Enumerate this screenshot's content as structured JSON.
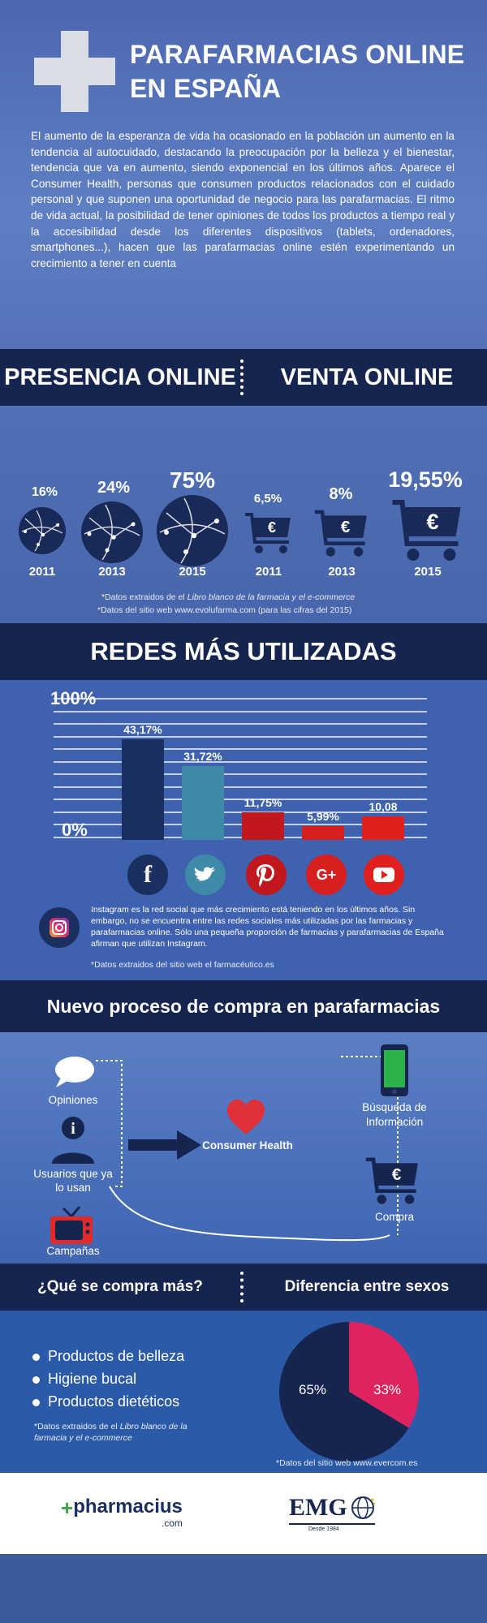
{
  "header": {
    "title_line1": "PARAFARMACIAS ONLINE",
    "title_line2": "EN ESPAÑA",
    "intro": "El aumento de la esperanza de vida ha ocasionado en la población un aumento en la tendencia al autocuidado, destacando la preocupación por la belleza y el bienestar, tendencia que va en aumento, siendo exponencial en los últimos años. Aparece el Consumer Health, personas que consumen productos relacionados con el cuidado personal y que suponen una oportunidad de negocio para las parafarmacias. El ritmo de vida actual, la posibilidad de tener opiniones de todos los productos a tiempo real y la accesibilidad desde los diferentes dispositivos (tablets, ordenadores, smartphones...), hacen que las parafarmacias online estén experimentando un crecimiento a tener en cuenta"
  },
  "presence": {
    "left_heading": "PRESENCIA ONLINE",
    "right_heading": "VENTA ONLINE",
    "online_presence": [
      {
        "year": "2011",
        "value": "16%"
      },
      {
        "year": "2013",
        "value": "24%"
      },
      {
        "year": "2015",
        "value": "75%"
      }
    ],
    "online_sales": [
      {
        "year": "2011",
        "value": "6,5%"
      },
      {
        "year": "2013",
        "value": "8%"
      },
      {
        "year": "2015",
        "value": "19,55%"
      }
    ],
    "currency_symbol": "€",
    "note1_prefix": "*Datos extraidos de el ",
    "note1_italic": "Libro blanco de la farmacia y el e-commerce",
    "note2": "*Datos del sitio web www.evolufarma.com (para las cifras del 2015)"
  },
  "redes": {
    "heading": "REDES MÁS UTILIZADAS",
    "y_top": "100%",
    "y_bottom": "0%",
    "instagram_text": "Instagram es la red social que más crecimiento está teniendo en los últimos años. Sin embargo, no se encuentra entre las redes sociales más utilizadas por las farmacias y parafarmacias online. Sólo una pequeña proporción de farmacias y parafarmacias de España afirman que utilizan Instagram.",
    "note": "*Datos extraidos del sitio web el farmacéutico.es",
    "icons": {
      "facebook": "f",
      "google_plus": "G+"
    }
  },
  "chart_data": {
    "type": "bar",
    "categories": [
      "Facebook",
      "Twitter",
      "Pinterest",
      "Google+",
      "YouTube"
    ],
    "values": [
      43.17,
      31.72,
      11.75,
      5.99,
      10.08
    ],
    "value_labels": [
      "43,17%",
      "31,72%",
      "11,75%",
      "5,99%",
      "10,08"
    ],
    "colors": [
      "#1b2f60",
      "#3f8aa8",
      "#c0181d",
      "#d71f1f",
      "#e01f1f"
    ],
    "ylim": [
      0,
      100
    ],
    "grid": true
  },
  "compra": {
    "heading": "Nuevo proceso de compra en parafarmacias",
    "opiniones": "Opiniones",
    "usuarios": "Usuarios que ya lo usan",
    "campanas": "Campañas",
    "consumer": "Consumer Health",
    "busqueda": "Búsqueda de Información",
    "compra": "Compra",
    "info_glyph": "i",
    "currency_symbol": "€"
  },
  "que": {
    "left_heading": "¿Qué se compra más?",
    "right_heading": "Diferencia entre sexos",
    "items": [
      "Productos de belleza",
      "Higiene bucal",
      "Productos dietéticos"
    ],
    "note_prefix": "*Datos extraidos de el ",
    "note_italic": "Libro blanco de la farmacia y el e-commerce",
    "pie_left": "65%",
    "pie_right": "33%",
    "pie_note": "*Datos del sitio web www.evercom.es",
    "pie_values": [
      65,
      33
    ]
  },
  "footer": {
    "brand": "pharmacius",
    "brand_sub": ".com",
    "emg": "EMG",
    "emg_sub": "Desde 1984"
  }
}
